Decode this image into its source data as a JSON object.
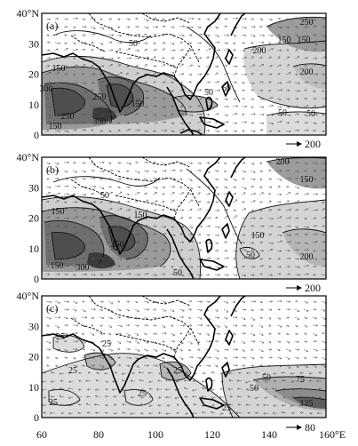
{
  "figure": {
    "panels": [
      {
        "tag": "(a)",
        "ref_arrow_value": "200",
        "contour_labels": [
          "50",
          "150",
          "250",
          "300",
          "350",
          "150",
          "250",
          "150",
          "50",
          "200",
          "150",
          "250",
          "50",
          "50",
          "200",
          "50",
          "150"
        ]
      },
      {
        "tag": "(b)",
        "ref_arrow_value": "200",
        "contour_labels": [
          "50",
          "150",
          "350",
          "150",
          "300",
          "150",
          "200",
          "150",
          "150",
          "200",
          "50",
          "50"
        ]
      },
      {
        "tag": "(c)",
        "ref_arrow_value": "80",
        "contour_labels": [
          "25",
          "25",
          "25",
          "25",
          "25",
          "50",
          "75",
          "125",
          "25",
          "50",
          "25"
        ]
      }
    ],
    "y_ticks": [
      "40°N",
      "30",
      "20",
      "10",
      "0"
    ],
    "x_ticks": [
      "60",
      "80",
      "100",
      "120",
      "140",
      "160°E"
    ]
  }
}
